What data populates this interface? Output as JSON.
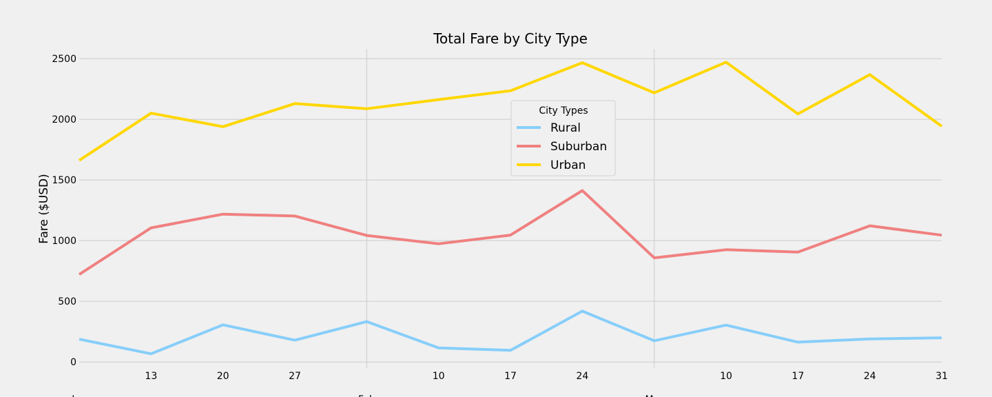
{
  "chart_data": {
    "type": "line",
    "title": "Total Fare by City Type",
    "xlabel": "",
    "ylabel": "Fare ($USD)",
    "x": [
      "2019-01-06",
      "2019-01-13",
      "2019-01-20",
      "2019-01-27",
      "2019-02-03",
      "2019-02-10",
      "2019-02-17",
      "2019-02-24",
      "2019-03-03",
      "2019-03-10",
      "2019-03-17",
      "2019-03-24",
      "2019-03-31"
    ],
    "series": [
      {
        "name": "Rural",
        "color": "#87cefa",
        "values": [
          187.92,
          67.65,
          306.0,
          179.69,
          333.08,
          115.8,
          95.82,
          419.06,
          175.14,
          303.94,
          163.39,
          189.76,
          199.42
        ]
      },
      {
        "name": "Suburban",
        "color": "#f08080",
        "values": [
          721.6,
          1105.13,
          1218.2,
          1203.28,
          1042.79,
          974.34,
          1045.5,
          1412.74,
          858.46,
          925.27,
          906.2,
          1122.2,
          1045.06
        ]
      },
      {
        "name": "Urban",
        "color": "#ffd700",
        "values": [
          1661.68,
          2050.43,
          1939.02,
          2129.51,
          2086.94,
          2162.64,
          2235.07,
          2466.29,
          2218.2,
          2470.93,
          2044.42,
          2368.37,
          1943.42
        ]
      }
    ],
    "ylim": [
      -50,
      2580
    ],
    "yticks": [
      0,
      500,
      1000,
      1500,
      2000,
      2500
    ],
    "minor_ticks": [
      {
        "index": 1,
        "label": "13"
      },
      {
        "index": 2,
        "label": "20"
      },
      {
        "index": 3,
        "label": "27"
      },
      {
        "index": 5,
        "label": "10"
      },
      {
        "index": 6,
        "label": "17"
      },
      {
        "index": 7,
        "label": "24"
      },
      {
        "index": 9,
        "label": "10"
      },
      {
        "index": 10,
        "label": "17"
      },
      {
        "index": 11,
        "label": "24"
      },
      {
        "index": 12,
        "label": "31"
      }
    ],
    "major_ticks": [
      {
        "index": 0,
        "label": "Jan"
      },
      {
        "index": 4,
        "label": "Feb"
      },
      {
        "index": 8,
        "label": "Mar"
      }
    ],
    "grid": true,
    "legend": {
      "title": "City Types",
      "placement": "upper-center"
    }
  }
}
